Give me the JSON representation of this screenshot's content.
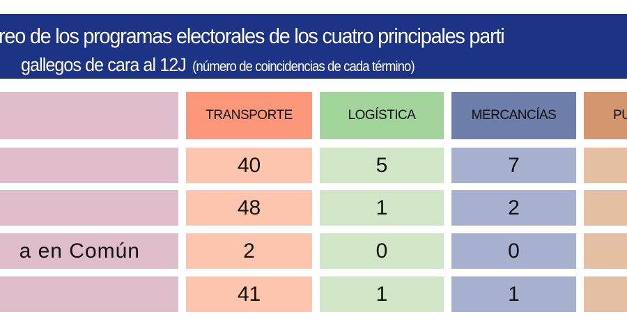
{
  "title": {
    "line1": "reo de los programas electorales de los cuatro principales parti",
    "line2": "gallegos de cara al 12J",
    "note": "(número de coincidencias de cada término)"
  },
  "columns": [
    "TRANSPORTE",
    "LOGÍSTICA",
    "MERCANCÍAS",
    "PU"
  ],
  "colors": {
    "banner": "#1c3386",
    "label": "#dfbccb",
    "header": [
      "#fd977a",
      "#a1d39b",
      "#6d7eab",
      "#d3966e"
    ],
    "cells": [
      "#fdc5ad",
      "#d1e6c7",
      "#a7b1cf",
      "#e4bfa3"
    ]
  },
  "rows": [
    {
      "label": "",
      "values": [
        "40",
        "5",
        "7"
      ]
    },
    {
      "label": "",
      "values": [
        "48",
        "1",
        "2"
      ]
    },
    {
      "label": "a en Común",
      "values": [
        "2",
        "0",
        "0"
      ]
    },
    {
      "label": "",
      "values": [
        "41",
        "1",
        "1"
      ]
    }
  ]
}
